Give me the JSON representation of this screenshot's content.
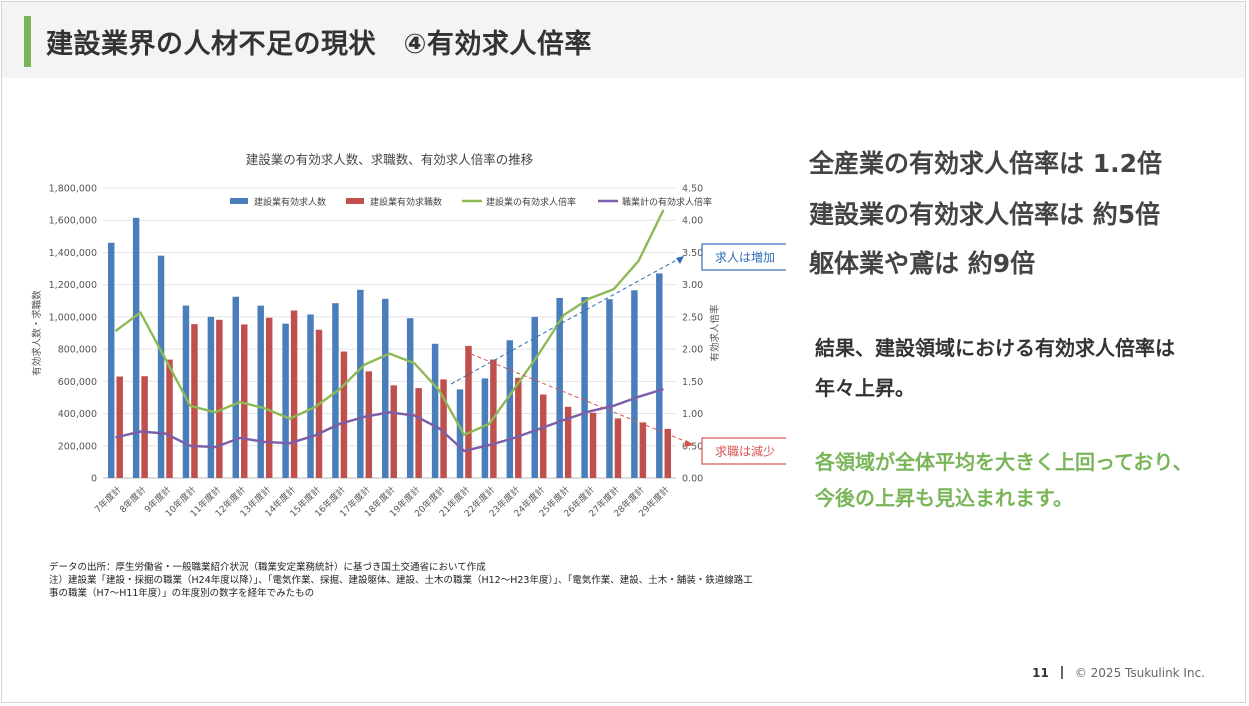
{
  "header": {
    "title": "建設業界の人材不足の現状　④有効求人倍率"
  },
  "key_points": [
    "全産業の有効求人倍率は 1.2倍",
    "建設業の有効求人倍率は 約5倍",
    "躯体業や鳶は 約9倍"
  ],
  "result": [
    "結果、建設領域における有効求人倍率は",
    "年々上昇。"
  ],
  "outlook": [
    "各領域が全体平均を大きく上回っており、",
    "今後の上昇も見込まれます。"
  ],
  "source_notes": [
    "データの出所：厚生労働省・一般職業紹介状況（職業安定業務統計）に基づき国土交通省において作成",
    "注）建設業「建設・採掘の職業（H24年度以降）」、「電気作業、採掘、建設躯体、建設、土木の職業（H12～H23年度）」、「電気作業、建設、土木・舗装・鉄道線路工",
    "事の職業（H7～H11年度）」の年度別の数字を経年でみたもの"
  ],
  "footer": {
    "page": "11",
    "copyright": "© 2025 Tsukulink Inc."
  },
  "colors": {
    "accent": "#7ab659",
    "bar1": "#4a7ebb",
    "bar2": "#c0504d",
    "line1": "#8db956",
    "line2": "#7c5ea8",
    "blue_note": "#2f6db5",
    "red_note": "#d9534f"
  },
  "chart_data": {
    "type": "bar",
    "title": "建設業の有効求人数、求職数、有効求人倍率の推移",
    "ylabel": "有効求人数・求職数",
    "y2label": "有効求人倍率",
    "ylim": [
      0,
      1800000
    ],
    "y2lim": [
      0,
      4.5
    ],
    "yticks": [
      "0",
      "200,000",
      "400,000",
      "600,000",
      "800,000",
      "1,000,000",
      "1,200,000",
      "1,400,000",
      "1,600,000",
      "1,800,000"
    ],
    "y2ticks": [
      "0.00",
      "0.50",
      "1.00",
      "1.50",
      "2.00",
      "2.50",
      "3.00",
      "3.50",
      "4.00",
      "4.50"
    ],
    "grid": true,
    "legend_position": "top",
    "categories": [
      "7年度計",
      "8年度計",
      "9年度計",
      "10年度計",
      "11年度計",
      "12年度計",
      "13年度計",
      "14年度計",
      "15年度計",
      "16年度計",
      "17年度計",
      "18年度計",
      "19年度計",
      "20年度計",
      "21年度計",
      "22年度計",
      "23年度計",
      "24年度計",
      "25年度計",
      "26年度計",
      "27年度計",
      "28年度計",
      "29年度計"
    ],
    "series": [
      {
        "name": "建設業有効求人数",
        "kind": "bar",
        "axis": "left",
        "values": [
          1460000,
          1615000,
          1380000,
          1070000,
          1000000,
          1125000,
          1070000,
          958000,
          1015000,
          1085000,
          1168000,
          1112000,
          992000,
          833000,
          550000,
          618000,
          855000,
          1000000,
          1118000,
          1123000,
          1110000,
          1165000,
          1270000
        ]
      },
      {
        "name": "建設業有効求職数",
        "kind": "bar",
        "axis": "left",
        "values": [
          630000,
          632000,
          735000,
          955000,
          982000,
          953000,
          995000,
          1040000,
          920000,
          785000,
          662000,
          575000,
          558000,
          612000,
          820000,
          735000,
          622000,
          518000,
          442000,
          405000,
          370000,
          345000,
          305000
        ]
      },
      {
        "name": "建設業の有効求人倍率",
        "kind": "line",
        "axis": "right",
        "values": [
          2.28,
          2.57,
          1.85,
          1.12,
          1.02,
          1.18,
          1.08,
          0.92,
          1.1,
          1.38,
          1.76,
          1.93,
          1.78,
          1.36,
          0.67,
          0.84,
          1.38,
          1.93,
          2.53,
          2.78,
          2.93,
          3.37,
          4.16
        ]
      },
      {
        "name": "職業計の有効求人倍率",
        "kind": "line",
        "axis": "right",
        "values": [
          0.63,
          0.72,
          0.69,
          0.5,
          0.48,
          0.62,
          0.56,
          0.54,
          0.66,
          0.84,
          0.95,
          1.02,
          0.97,
          0.77,
          0.42,
          0.51,
          0.62,
          0.76,
          0.9,
          1.03,
          1.12,
          1.26,
          1.38
        ]
      }
    ],
    "annotations": [
      {
        "text": "求人は増加",
        "color": "#2f6db5"
      },
      {
        "text": "求職は減少",
        "color": "#d9534f"
      }
    ]
  }
}
